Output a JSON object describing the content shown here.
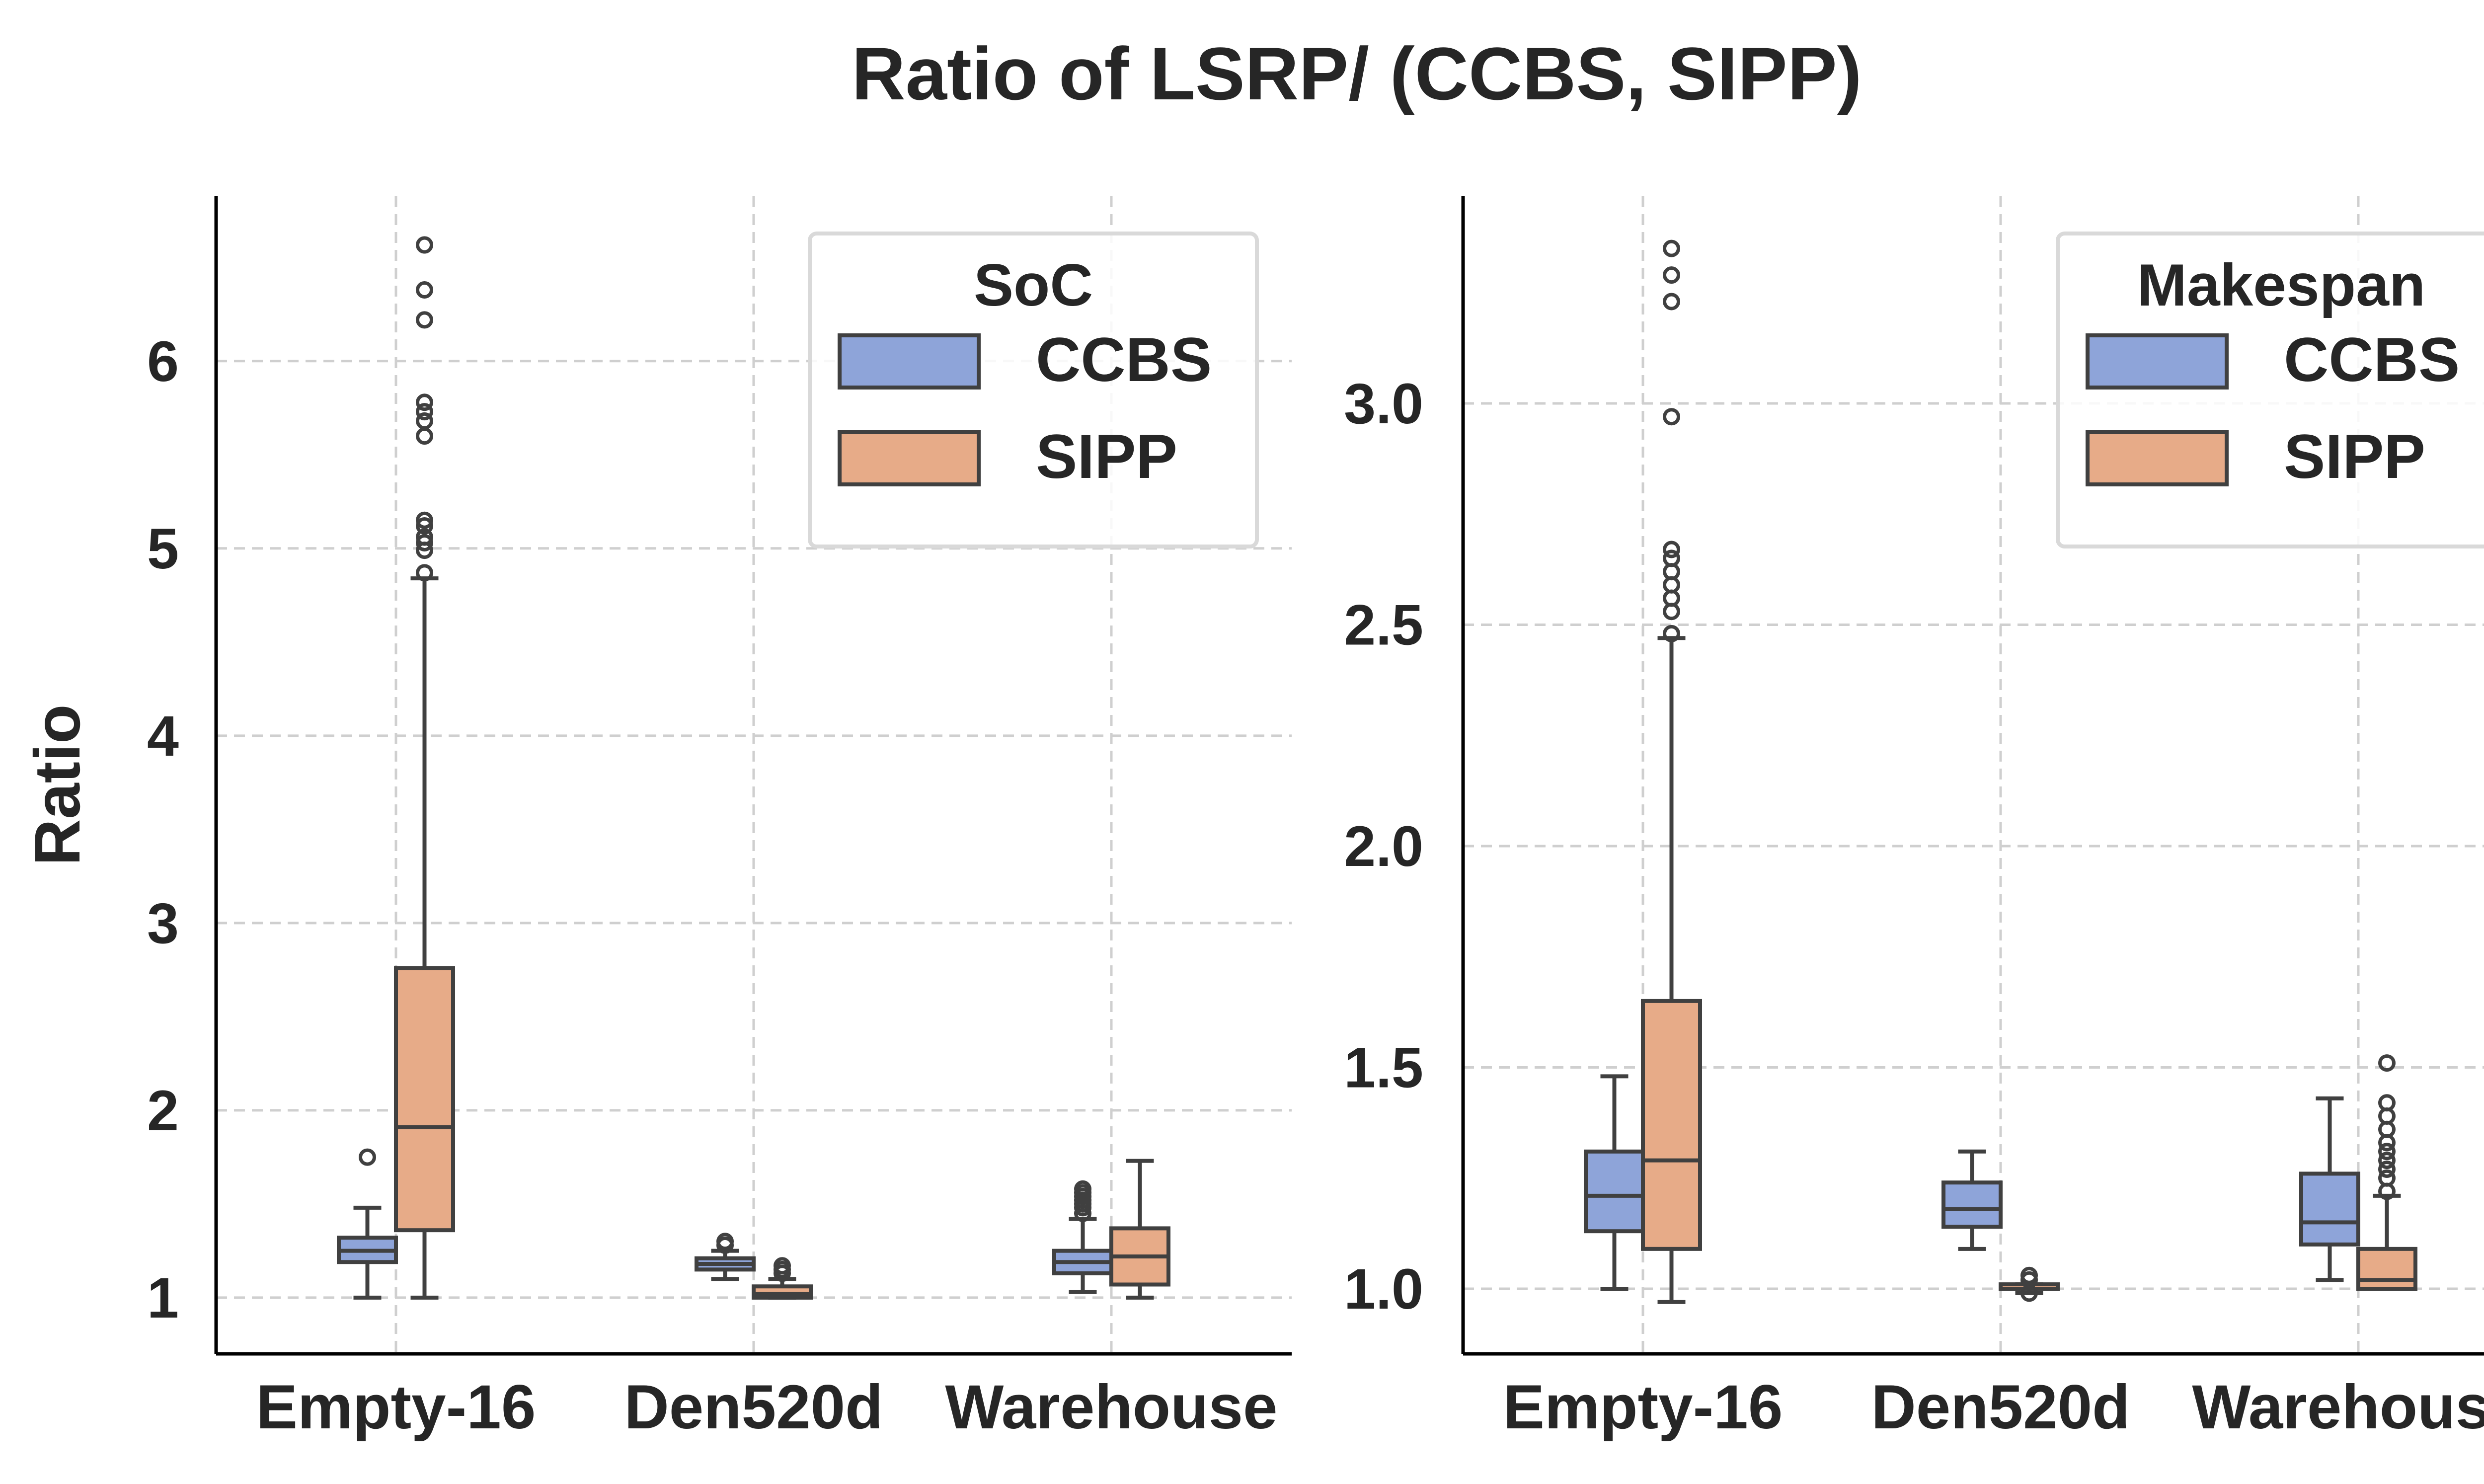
{
  "title": "Ratio of LSRP/ (CCBS, SIPP)",
  "colors": {
    "CCBS": "#8ea4d9",
    "SIPP": "#e7ab88",
    "edge": "#404040",
    "grid": "#cfcfcf"
  },
  "chart_data": [
    {
      "type": "box",
      "ylabel": "Ratio",
      "ylim": [
        0.7,
        6.88
      ],
      "yticks": [
        1,
        2,
        3,
        4,
        5,
        6
      ],
      "ytick_labels": [
        "1",
        "2",
        "3",
        "4",
        "5",
        "6"
      ],
      "categories": [
        "Empty-16",
        "Den520d",
        "Warehouse"
      ],
      "legend": {
        "title": "SoC",
        "entries": [
          "CCBS",
          "SIPP"
        ],
        "loc": "top-right"
      },
      "grid": true,
      "series": [
        {
          "name": "CCBS",
          "boxes": [
            {
              "min": 1.0,
              "q1": 1.19,
              "median": 1.25,
              "q3": 1.32,
              "max": 1.48,
              "outliers": [
                1.75
              ]
            },
            {
              "min": 1.1,
              "q1": 1.15,
              "median": 1.18,
              "q3": 1.21,
              "max": 1.25,
              "outliers": [
                1.28,
                1.3
              ]
            },
            {
              "min": 1.03,
              "q1": 1.13,
              "median": 1.19,
              "q3": 1.25,
              "max": 1.42,
              "outliers": [
                1.45,
                1.48,
                1.5,
                1.52,
                1.54,
                1.56,
                1.58
              ]
            }
          ]
        },
        {
          "name": "SIPP",
          "boxes": [
            {
              "min": 1.0,
              "q1": 1.36,
              "median": 1.91,
              "q3": 2.76,
              "max": 4.84,
              "outliers": [
                4.87,
                4.99,
                5.03,
                5.06,
                5.12,
                5.15,
                5.6,
                5.68,
                5.73,
                5.78,
                6.22,
                6.38,
                6.62
              ]
            },
            {
              "min": 1.0,
              "q1": 1.0,
              "median": 1.02,
              "q3": 1.06,
              "max": 1.1,
              "outliers": [
                1.13,
                1.15,
                1.17
              ]
            },
            {
              "min": 1.0,
              "q1": 1.07,
              "median": 1.22,
              "q3": 1.37,
              "max": 1.73,
              "outliers": []
            }
          ]
        }
      ]
    },
    {
      "type": "box",
      "ylabel": "",
      "ylim": [
        0.853,
        3.468
      ],
      "yticks": [
        1.0,
        1.5,
        2.0,
        2.5,
        3.0
      ],
      "ytick_labels": [
        "1.0",
        "1.5",
        "2.0",
        "2.5",
        "3.0"
      ],
      "categories": [
        "Empty-16",
        "Den520d",
        "Warehouse"
      ],
      "legend": {
        "title": "Makespan",
        "entries": [
          "CCBS",
          "SIPP"
        ],
        "loc": "top-right"
      },
      "grid": true,
      "series": [
        {
          "name": "CCBS",
          "boxes": [
            {
              "min": 1.0,
              "q1": 1.13,
              "median": 1.21,
              "q3": 1.31,
              "max": 1.48,
              "outliers": []
            },
            {
              "min": 1.09,
              "q1": 1.14,
              "median": 1.18,
              "q3": 1.24,
              "max": 1.31,
              "outliers": []
            },
            {
              "min": 1.02,
              "q1": 1.1,
              "median": 1.15,
              "q3": 1.26,
              "max": 1.43,
              "outliers": []
            }
          ]
        },
        {
          "name": "SIPP",
          "boxes": [
            {
              "min": 0.97,
              "q1": 1.09,
              "median": 1.29,
              "q3": 1.65,
              "max": 2.47,
              "outliers": [
                2.48,
                2.53,
                2.56,
                2.59,
                2.62,
                2.65,
                2.67,
                2.97,
                3.23,
                3.29,
                3.35
              ]
            },
            {
              "min": 0.99,
              "q1": 1.0,
              "median": 1.0,
              "q3": 1.01,
              "max": 1.01,
              "outliers": [
                0.99,
                1.02,
                1.03
              ]
            },
            {
              "min": 1.0,
              "q1": 1.0,
              "median": 1.02,
              "q3": 1.09,
              "max": 1.21,
              "outliers": [
                1.22,
                1.25,
                1.27,
                1.29,
                1.31,
                1.33,
                1.36,
                1.39,
                1.42,
                1.51
              ]
            }
          ]
        }
      ]
    }
  ]
}
